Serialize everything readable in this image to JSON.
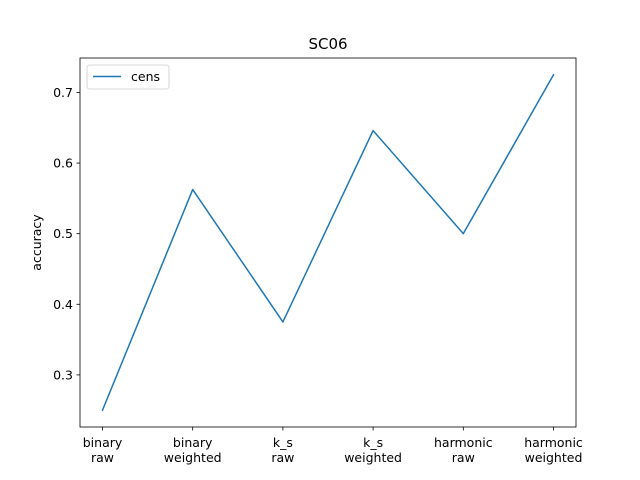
{
  "chart_data": {
    "type": "line",
    "title": "SC06",
    "xlabel": "",
    "ylabel": "accuracy",
    "categories": [
      [
        "binary",
        "raw"
      ],
      [
        "binary",
        "weighted"
      ],
      [
        "k_s",
        "raw"
      ],
      [
        "k_s",
        "weighted"
      ],
      [
        "harmonic",
        "raw"
      ],
      [
        "harmonic",
        "weighted"
      ]
    ],
    "series": [
      {
        "name": "cens",
        "color": "#1f77b4",
        "values": [
          0.25,
          0.5625,
          0.375,
          0.646,
          0.5,
          0.725
        ]
      }
    ],
    "ylim": [
      0.2262,
      0.7488
    ],
    "yticks": [
      0.3,
      0.4,
      0.5,
      0.6,
      0.7
    ],
    "ytick_labels": [
      "0.3",
      "0.4",
      "0.5",
      "0.6",
      "0.7"
    ],
    "grid": false,
    "legend_position": "top-left"
  }
}
